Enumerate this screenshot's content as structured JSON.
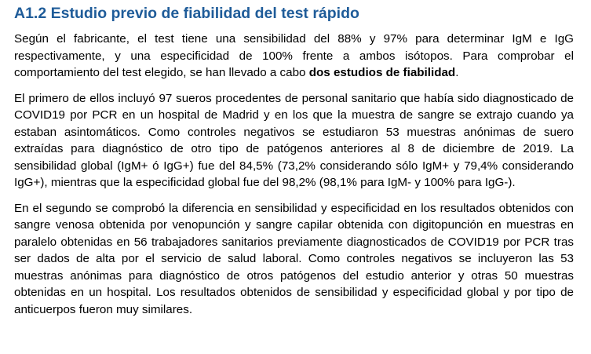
{
  "heading": {
    "title": "A1.2 Estudio previo de fiabilidad del test rápido",
    "color": "#1f5c99"
  },
  "paragraphs": {
    "p1_text": "Según el fabricante, el test tiene una sensibilidad del 88% y 97% para determinar IgM e IgG respectivamente, y una especificidad de 100% frente a ambos isótopos. Para comprobar el comportamiento del test elegido, se han llevado a cabo ",
    "p1_bold": "dos estudios de fiabilidad",
    "p1_end": ".",
    "p2": "El primero de ellos incluyó 97 sueros procedentes de personal sanitario que había sido diagnosticado de COVID19 por PCR en un hospital de Madrid y en los que la muestra de sangre se extrajo cuando ya estaban asintomáticos. Como controles negativos se estudiaron 53 muestras anónimas de suero extraídas para diagnóstico de otro tipo de patógenos anteriores al 8 de diciembre de 2019.  La sensibilidad global (IgM+ ó IgG+) fue del 84,5% (73,2% considerando sólo IgM+ y 79,4% considerando IgG+), mientras que la especificidad global fue del 98,2% (98,1% para IgM- y 100% para IgG-).",
    "p3": "En el segundo se comprobó la diferencia en sensibilidad y especificidad en los resultados obtenidos con sangre venosa obtenida por venopunción y sangre capilar obtenida con digitopunción en muestras en paralelo obtenidas en 56 trabajadores sanitarios previamente diagnosticados de COVID19 por PCR tras ser dados de alta por el servicio de salud laboral. Como controles negativos se incluyeron las 53 muestras anónimas para diagnóstico de otros patógenos del estudio anterior y otras 50 muestras obtenidas en un hospital. Los resultados obtenidos de sensibilidad y especificidad global y por tipo de anticuerpos fueron muy similares."
  }
}
